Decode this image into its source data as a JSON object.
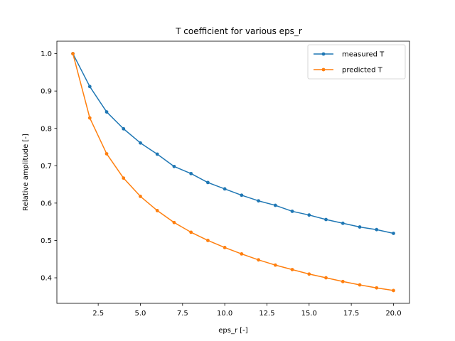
{
  "chart_data": {
    "type": "line",
    "title": "T coefficient for various eps_r",
    "xlabel": "eps_r [-]",
    "ylabel": "Relative amplitude [-]",
    "xlim": [
      0.05,
      20.95
    ],
    "ylim": [
      0.3316,
      1.0334
    ],
    "x_ticks": [
      2.5,
      5.0,
      7.5,
      10.0,
      12.5,
      15.0,
      17.5,
      20.0
    ],
    "x_tick_labels": [
      "2.5",
      "5.0",
      "7.5",
      "10.0",
      "12.5",
      "15.0",
      "17.5",
      "20.0"
    ],
    "y_ticks": [
      0.4,
      0.5,
      0.6,
      0.7,
      0.8,
      0.9,
      1.0
    ],
    "y_tick_labels": [
      "0.4",
      "0.5",
      "0.6",
      "0.7",
      "0.8",
      "0.9",
      "1.0"
    ],
    "grid": false,
    "legend_position": "top-right",
    "x": [
      1,
      2,
      3,
      4,
      5,
      6,
      7,
      8,
      9,
      10,
      11,
      12,
      13,
      14,
      15,
      16,
      17,
      18,
      19,
      20
    ],
    "series": [
      {
        "name": "measured T",
        "color": "#1f77b4",
        "values": [
          1.0,
          0.912,
          0.844,
          0.799,
          0.761,
          0.731,
          0.698,
          0.679,
          0.655,
          0.638,
          0.621,
          0.606,
          0.594,
          0.578,
          0.568,
          0.556,
          0.546,
          0.536,
          0.529,
          0.519
        ]
      },
      {
        "name": "predicted T",
        "color": "#ff7f0e",
        "values": [
          1.0,
          0.828,
          0.732,
          0.667,
          0.618,
          0.58,
          0.548,
          0.522,
          0.5,
          0.481,
          0.464,
          0.448,
          0.434,
          0.422,
          0.41,
          0.4,
          0.39,
          0.381,
          0.373,
          0.366
        ]
      }
    ]
  }
}
